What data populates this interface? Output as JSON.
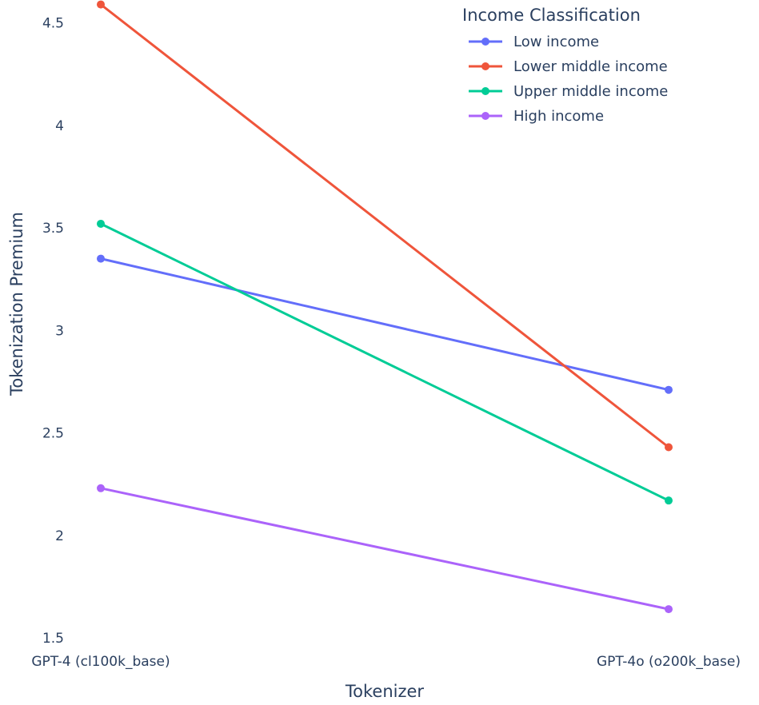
{
  "chart_data": {
    "type": "line",
    "categories": [
      "GPT-4 (cl100k_base)",
      "GPT-4o (o200k_base)"
    ],
    "xlabel": "Tokenizer",
    "ylabel": "Tokenization Premium",
    "ylim": [
      1.5,
      4.6
    ],
    "yticks": [
      1.5,
      2,
      2.5,
      3,
      3.5,
      4,
      4.5
    ],
    "ytick_labels": [
      "1.5",
      "2",
      "2.5",
      "3",
      "3.5",
      "4",
      "4.5"
    ],
    "grid": false,
    "legend": {
      "title": "Income Classification",
      "placement": "top-right"
    },
    "series": [
      {
        "name": "Low income",
        "values": [
          3.35,
          2.71
        ],
        "color": "#636efa"
      },
      {
        "name": "Lower middle income",
        "values": [
          4.59,
          2.43
        ],
        "color": "#ef553b"
      },
      {
        "name": "Upper middle income",
        "values": [
          3.52,
          2.17
        ],
        "color": "#00cc96"
      },
      {
        "name": "High income",
        "values": [
          2.23,
          1.64
        ],
        "color": "#ab63fa"
      }
    ]
  }
}
